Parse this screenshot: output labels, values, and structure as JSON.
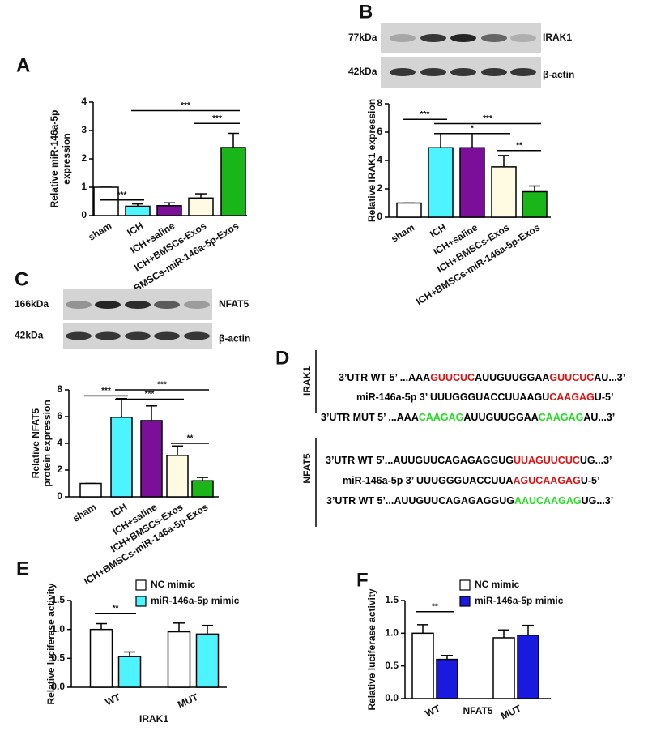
{
  "chart_data": [
    {
      "type": "bar",
      "panel": "A",
      "y_label": [
        "Relative miR-146a-5p",
        "expression"
      ],
      "categories": [
        "sham",
        "ICH",
        "ICH+saline",
        "ICH+BMSCs-Exos",
        "ICH+BMSCs-miR-146a-5p-Exos"
      ],
      "values": [
        1,
        0.33,
        0.35,
        0.62,
        2.4
      ],
      "errors": [
        0,
        0.08,
        0.1,
        0.15,
        0.5
      ],
      "colors": [
        "#ffffff",
        "#4df3ff",
        "#7b0f99",
        "#fffbe3",
        "#19b519"
      ],
      "ylim": [
        0,
        4
      ],
      "yticks": [
        0,
        1,
        2,
        3,
        4
      ],
      "annotations": [
        "***",
        "***",
        "***"
      ]
    },
    {
      "type": "bar",
      "panel": "B",
      "y_label": [
        "Relative IRAK1 expression"
      ],
      "blots": [
        {
          "size": "77kDa",
          "protein": "IRAK1"
        },
        {
          "size": "42kDa",
          "protein": "β-actin"
        }
      ],
      "categories": [
        "sham",
        "ICH",
        "ICH+saline",
        "ICH+BMSCs-Exos",
        "ICH+BMSCs-miR-146a-5p-Exos"
      ],
      "values": [
        1,
        4.9,
        4.9,
        3.55,
        1.8
      ],
      "errors": [
        0,
        1.0,
        1.0,
        0.8,
        0.4
      ],
      "colors": [
        "#ffffff",
        "#4df3ff",
        "#7b0f99",
        "#fffbe3",
        "#19b519"
      ],
      "ylim": [
        0,
        8
      ],
      "yticks": [
        0,
        2,
        4,
        6,
        8
      ],
      "annotations": [
        "***",
        "***",
        "*",
        "**"
      ]
    },
    {
      "type": "bar",
      "panel": "C",
      "y_label": [
        "Relative NFAT5",
        "protein expression"
      ],
      "blots": [
        {
          "size": "166kDa",
          "protein": "NFAT5"
        },
        {
          "size": "42kDa",
          "protein": "β-actin"
        }
      ],
      "categories": [
        "sham",
        "ICH",
        "ICH+saline",
        "ICH+BMSCs-Exos",
        "ICH+BMSCs-miR-146a-5p-Exos"
      ],
      "values": [
        1,
        5.95,
        5.7,
        3.1,
        1.2
      ],
      "errors": [
        0,
        1.4,
        1.1,
        0.7,
        0.25
      ],
      "colors": [
        "#ffffff",
        "#4df3ff",
        "#7b0f99",
        "#fffbe3",
        "#19b519"
      ],
      "ylim": [
        0,
        8
      ],
      "yticks": [
        0,
        2,
        4,
        6,
        8
      ],
      "annotations": [
        "***",
        "***",
        "***",
        "**"
      ]
    },
    {
      "type": "bar",
      "panel": "E",
      "y_label": [
        "Relative luciferase activity"
      ],
      "x_label": "IRAK1",
      "categories": [
        "WT",
        "MUT"
      ],
      "series": [
        {
          "name": "NC mimic",
          "color": "#ffffff",
          "values": [
            1.0,
            0.96
          ],
          "errors": [
            0.1,
            0.15
          ]
        },
        {
          "name": "miR-146a-5p mimic",
          "color": "#4df3ff",
          "values": [
            0.53,
            0.92
          ],
          "errors": [
            0.08,
            0.15
          ]
        }
      ],
      "ylim": [
        0,
        1.5
      ],
      "yticks": [
        {
          "value": 0,
          "label": "0.0"
        },
        {
          "value": 0.5,
          "label": "0.5"
        },
        {
          "value": 1,
          "label": "1.0"
        },
        {
          "value": 1.5,
          "label": "1.5"
        }
      ],
      "annotations": [
        "**"
      ]
    },
    {
      "type": "bar",
      "panel": "F",
      "y_label": [
        "Relative luciferase activity"
      ],
      "x_label": "NFAT5",
      "categories": [
        "WT",
        "MUT"
      ],
      "series": [
        {
          "name": "NC mimic",
          "color": "#ffffff",
          "values": [
            1.0,
            0.93
          ],
          "errors": [
            0.13,
            0.12
          ]
        },
        {
          "name": "miR-146a-5p mimic",
          "color": "#1a1adf",
          "values": [
            0.6,
            0.97
          ],
          "errors": [
            0.06,
            0.15
          ]
        }
      ],
      "ylim": [
        0,
        1.5
      ],
      "yticks": [
        {
          "value": 0,
          "label": "0.0"
        },
        {
          "value": 0.5,
          "label": "0.5"
        },
        {
          "value": 1,
          "label": "1.0"
        },
        {
          "value": 1.5,
          "label": "1.5"
        }
      ],
      "annotations": [
        "**"
      ]
    }
  ],
  "sequence_panel": {
    "panel": "D",
    "groups": [
      {
        "label": "IRAK1",
        "lines": [
          [
            {
              "text": "3’UTR WT 5’ ...AAA",
              "color": "#000000"
            },
            {
              "text": "GUUCUC",
              "color": "#e01010"
            },
            {
              "text": "AUUGUUGGAA",
              "color": "#000000"
            },
            {
              "text": "GUUCUC",
              "color": "#e01010"
            },
            {
              "text": "AU...3’",
              "color": "#000000"
            }
          ],
          [
            {
              "text": "miR-146a-5p 3’ UUUGGGUACCUUAAGU",
              "color": "#000000"
            },
            {
              "text": "CAAGAG",
              "color": "#e01010"
            },
            {
              "text": "U-5’",
              "color": "#000000"
            }
          ],
          [
            {
              "text": "3’UTR MUT 5’ ...AAA",
              "color": "#000000"
            },
            {
              "text": "CAAGAG",
              "color": "#22dd22"
            },
            {
              "text": "AUUGUUGGAA",
              "color": "#000000"
            },
            {
              "text": "CAAGAG",
              "color": "#22dd22"
            },
            {
              "text": "AU...3’",
              "color": "#000000"
            }
          ]
        ]
      },
      {
        "label": "NFAT5",
        "lines": [
          [
            {
              "text": "3’UTR WT 5’...AUUGUUCAGAGAGGUG",
              "color": "#000000"
            },
            {
              "text": "UUAGUUCUC",
              "color": "#e01010"
            },
            {
              "text": "UG...3’",
              "color": "#000000"
            }
          ],
          [
            {
              "text": "miR-146a-5p 3’ UUUGGGUACCUUA",
              "color": "#000000"
            },
            {
              "text": "AGUCAAGAG",
              "color": "#e01010"
            },
            {
              "text": "U-5’",
              "color": "#000000"
            }
          ],
          [
            {
              "text": "3’UTR WT 5’...AUUGUUCAGAGAGGUG",
              "color": "#000000"
            },
            {
              "text": "AAUCAAGAG",
              "color": "#22dd22"
            },
            {
              "text": "UG...3’",
              "color": "#000000"
            }
          ]
        ]
      }
    ]
  }
}
